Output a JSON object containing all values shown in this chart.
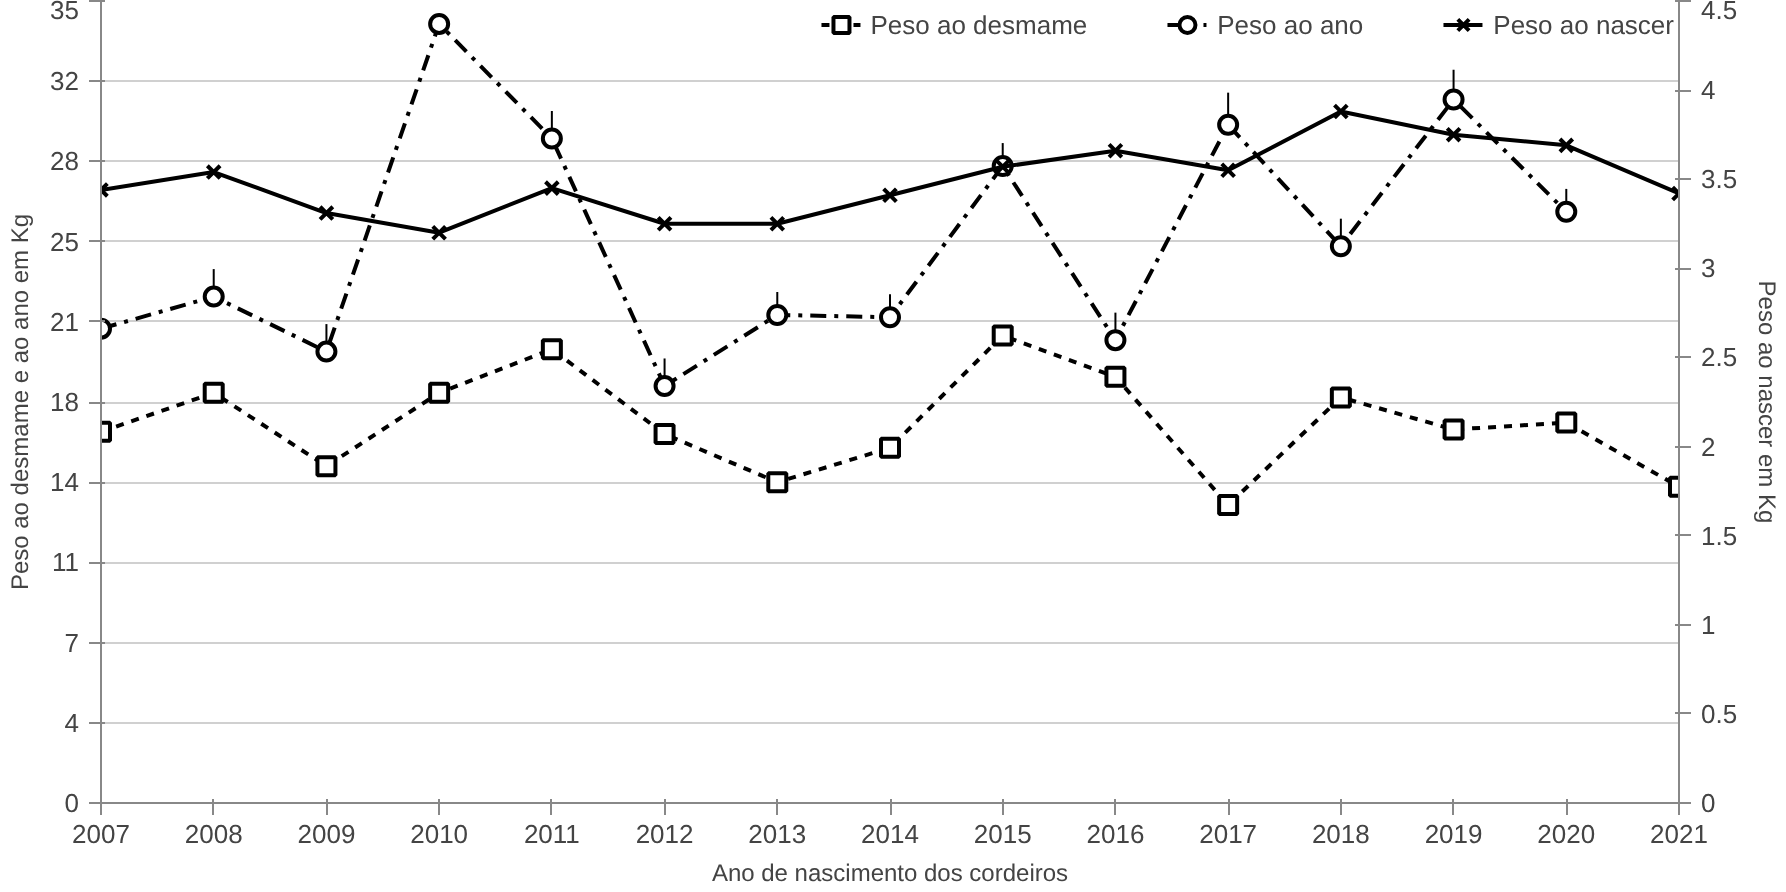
{
  "chart_data": {
    "type": "line",
    "xlabel": "Ano de nascimento dos cordeiros",
    "ylabel": "Peso ao desmame e ao ano em Kg",
    "y2label": "Peso ao nascer em Kg",
    "x": [
      2007,
      2008,
      2009,
      2010,
      2011,
      2012,
      2013,
      2014,
      2015,
      2016,
      2017,
      2018,
      2019,
      2020,
      2021
    ],
    "xlim": [
      2007,
      2021
    ],
    "xticks": [
      2007,
      2008,
      2009,
      2010,
      2011,
      2012,
      2013,
      2014,
      2015,
      2016,
      2017,
      2018,
      2019,
      2020,
      2021
    ],
    "ylim": [
      0,
      35
    ],
    "yticks": [
      0,
      {
        "value": 3.5,
        "label": "4"
      },
      7,
      {
        "value": 10.5,
        "label": "11"
      },
      14,
      {
        "value": 17.5,
        "label": "18"
      },
      21,
      {
        "value": 24.5,
        "label": "25"
      },
      28,
      {
        "value": 31.5,
        "label": "32"
      },
      35
    ],
    "y2lim": [
      0,
      4.5
    ],
    "y2ticks": [
      0,
      0.5,
      1,
      1.5,
      2,
      2.5,
      3,
      3.5,
      4,
      4.5
    ],
    "grid": "y",
    "legend": "top",
    "series": [
      {
        "name": "Peso ao desmame",
        "color": "#000000",
        "marker": "square",
        "line_style": "dotted",
        "values": [
          16.2,
          17.9,
          14.7,
          17.9,
          19.8,
          16.1,
          14.0,
          15.5,
          20.4,
          18.6,
          13.0,
          17.7,
          16.3,
          16.6,
          13.8
        ]
      },
      {
        "name": "Peso ao ano",
        "color": "#000000",
        "marker": "circle",
        "line_style": "dashed",
        "values": [
          20.7,
          22.1,
          19.7,
          34.0,
          29.0,
          18.2,
          21.3,
          21.2,
          27.8,
          20.2,
          29.6,
          24.3,
          30.7,
          25.8,
          null
        ],
        "errors": [
          null,
          [
            22.1,
            23.3
          ],
          [
            19.7,
            20.9
          ],
          null,
          [
            29.0,
            30.2
          ],
          [
            18.2,
            19.4
          ],
          [
            21.3,
            22.3
          ],
          [
            21.2,
            22.2
          ],
          [
            27.8,
            28.8
          ],
          [
            20.2,
            21.4
          ],
          [
            29.6,
            31.0
          ],
          [
            24.3,
            25.5
          ],
          [
            30.7,
            32.0
          ],
          [
            25.8,
            26.8
          ],
          null
        ]
      },
      {
        "name": "Peso ao nascer",
        "color": "#000000",
        "marker": "cross",
        "line_style": "solid",
        "axis": "y2",
        "values": [
          3.44,
          3.54,
          3.31,
          3.2,
          3.45,
          3.25,
          3.25,
          3.41,
          3.57,
          3.66,
          3.55,
          3.88,
          3.75,
          3.69,
          3.42
        ]
      }
    ]
  }
}
